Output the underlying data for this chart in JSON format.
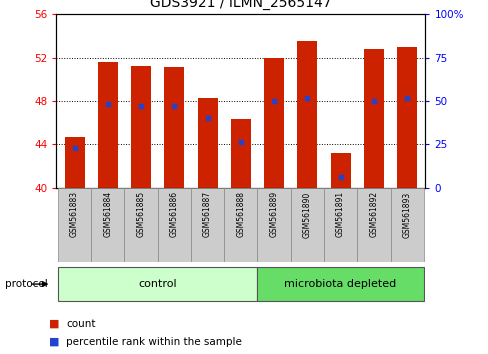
{
  "title": "GDS3921 / ILMN_2565147",
  "samples": [
    "GSM561883",
    "GSM561884",
    "GSM561885",
    "GSM561886",
    "GSM561887",
    "GSM561888",
    "GSM561889",
    "GSM561890",
    "GSM561891",
    "GSM561892",
    "GSM561893"
  ],
  "count_values": [
    44.7,
    51.6,
    51.2,
    51.1,
    48.3,
    46.3,
    52.0,
    53.5,
    43.2,
    52.8,
    53.0
  ],
  "percentile_values": [
    43.7,
    47.7,
    47.5,
    47.5,
    46.4,
    44.2,
    48.0,
    48.3,
    41.0,
    48.0,
    48.3
  ],
  "ylim_left": [
    40,
    56
  ],
  "ylim_right": [
    0,
    100
  ],
  "yticks_left": [
    40,
    44,
    48,
    52,
    56
  ],
  "yticks_right": [
    0,
    25,
    50,
    75,
    100
  ],
  "bar_color": "#cc2200",
  "marker_color": "#2244cc",
  "bar_width": 0.6,
  "baseline": 40,
  "control_indices": [
    0,
    1,
    2,
    3,
    4,
    5
  ],
  "microbiota_indices": [
    6,
    7,
    8,
    9,
    10
  ],
  "control_label": "control",
  "microbiota_label": "microbiota depleted",
  "control_color": "#ccffcc",
  "microbiota_color": "#66dd66",
  "legend_count": "count",
  "legend_percentile": "percentile rank within the sample",
  "protocol_label": "protocol",
  "xlabel_bg": "#cccccc",
  "grid_ticks": [
    44,
    48,
    52
  ]
}
